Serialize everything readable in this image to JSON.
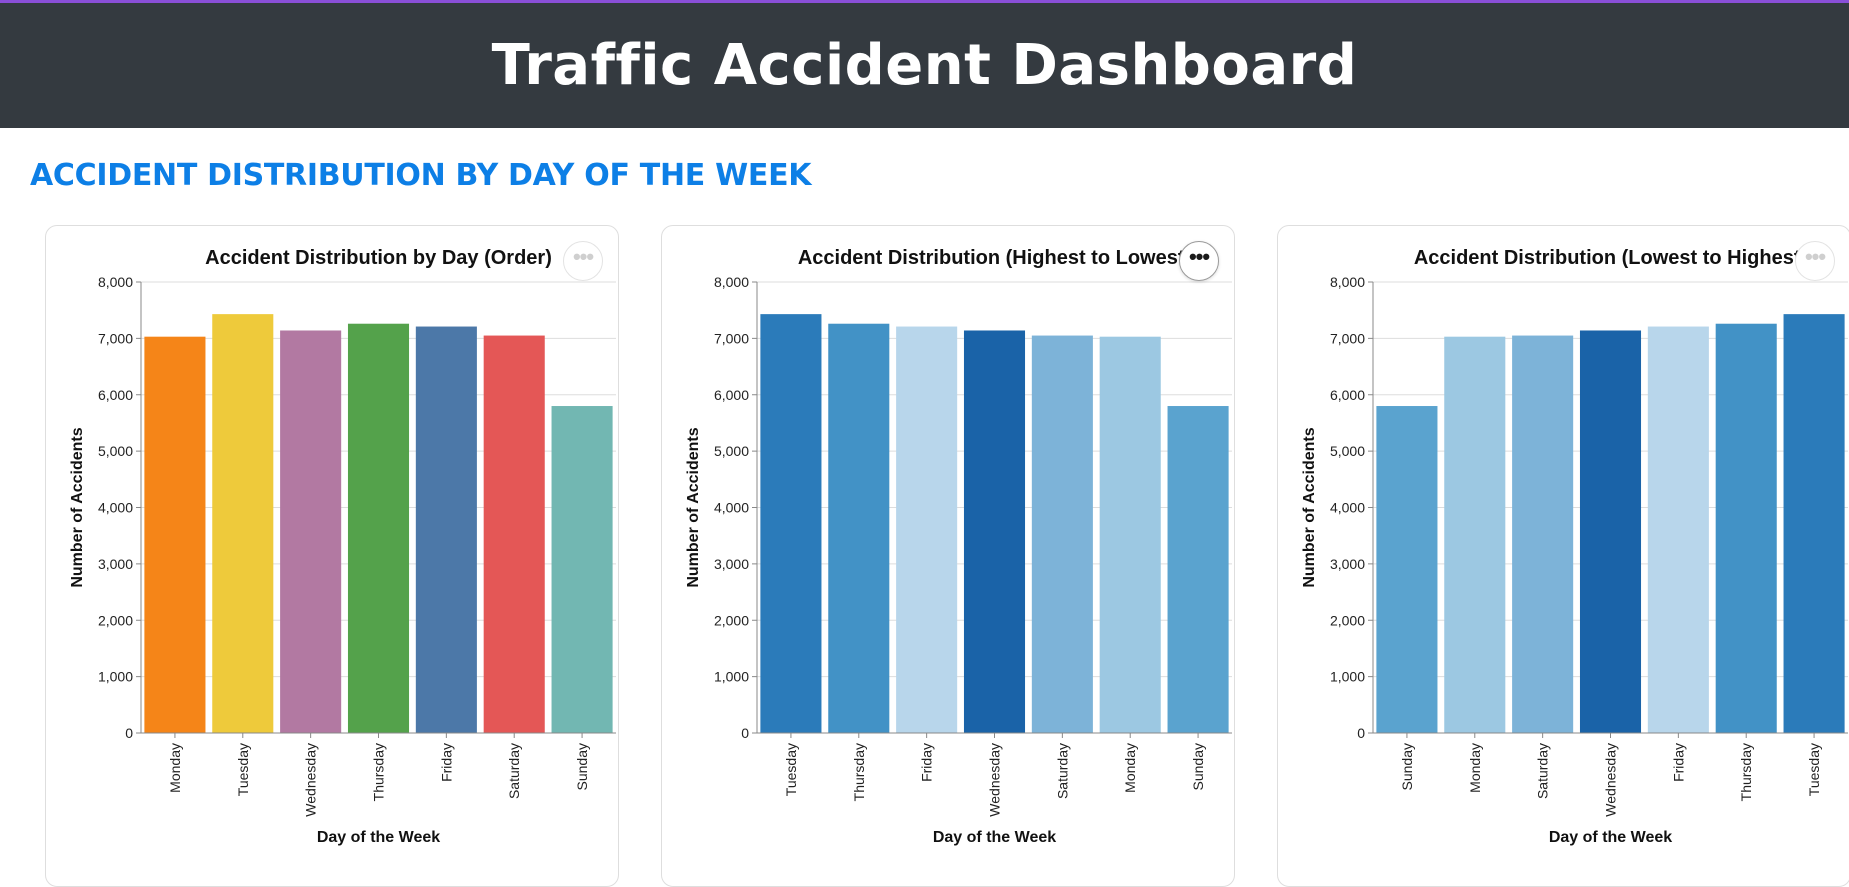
{
  "header": {
    "title": "Traffic Accident Dashboard"
  },
  "section": {
    "title": "ACCIDENT DISTRIBUTION BY DAY OF THE WEEK"
  },
  "menu_label": "•••",
  "chart_data": [
    {
      "type": "bar",
      "title": "Accident Distribution by Day (Order)",
      "xlabel": "Day of the Week",
      "ylabel": "Number of Accidents",
      "ylim": [
        0,
        8000
      ],
      "yticks": [
        0,
        1000,
        2000,
        3000,
        4000,
        5000,
        6000,
        7000,
        8000
      ],
      "grid": true,
      "categories": [
        "Monday",
        "Tuesday",
        "Wednesday",
        "Thursday",
        "Friday",
        "Saturday",
        "Sunday"
      ],
      "values": [
        7030,
        7430,
        7140,
        7260,
        7210,
        7050,
        5800
      ],
      "colors": [
        "#f58518",
        "#eeca3b",
        "#b279a2",
        "#54a24b",
        "#4c78a8",
        "#e45756",
        "#72b7b2"
      ]
    },
    {
      "type": "bar",
      "title": "Accident Distribution (Highest to Lowest)",
      "xlabel": "Day of the Week",
      "ylabel": "Number of Accidents",
      "ylim": [
        0,
        8000
      ],
      "yticks": [
        0,
        1000,
        2000,
        3000,
        4000,
        5000,
        6000,
        7000,
        8000
      ],
      "grid": true,
      "categories": [
        "Tuesday",
        "Thursday",
        "Friday",
        "Wednesday",
        "Saturday",
        "Monday",
        "Sunday"
      ],
      "values": [
        7430,
        7260,
        7210,
        7140,
        7050,
        7030,
        5800
      ],
      "colors": [
        "#2b7bba",
        "#4292c6",
        "#b8d6eb",
        "#1a63a8",
        "#7db3d8",
        "#9cc8e2",
        "#5aa3cf"
      ]
    },
    {
      "type": "bar",
      "title": "Accident Distribution (Lowest to Highest)",
      "xlabel": "Day of the Week",
      "ylabel": "Number of Accidents",
      "ylim": [
        0,
        8000
      ],
      "yticks": [
        0,
        1000,
        2000,
        3000,
        4000,
        5000,
        6000,
        7000,
        8000
      ],
      "grid": true,
      "categories": [
        "Sunday",
        "Monday",
        "Saturday",
        "Wednesday",
        "Friday",
        "Thursday",
        "Tuesday"
      ],
      "values": [
        5800,
        7030,
        7050,
        7140,
        7210,
        7260,
        7430
      ],
      "colors": [
        "#5aa3cf",
        "#9cc8e2",
        "#7db3d8",
        "#1a63a8",
        "#b8d6eb",
        "#4292c6",
        "#2b7bba"
      ]
    }
  ]
}
